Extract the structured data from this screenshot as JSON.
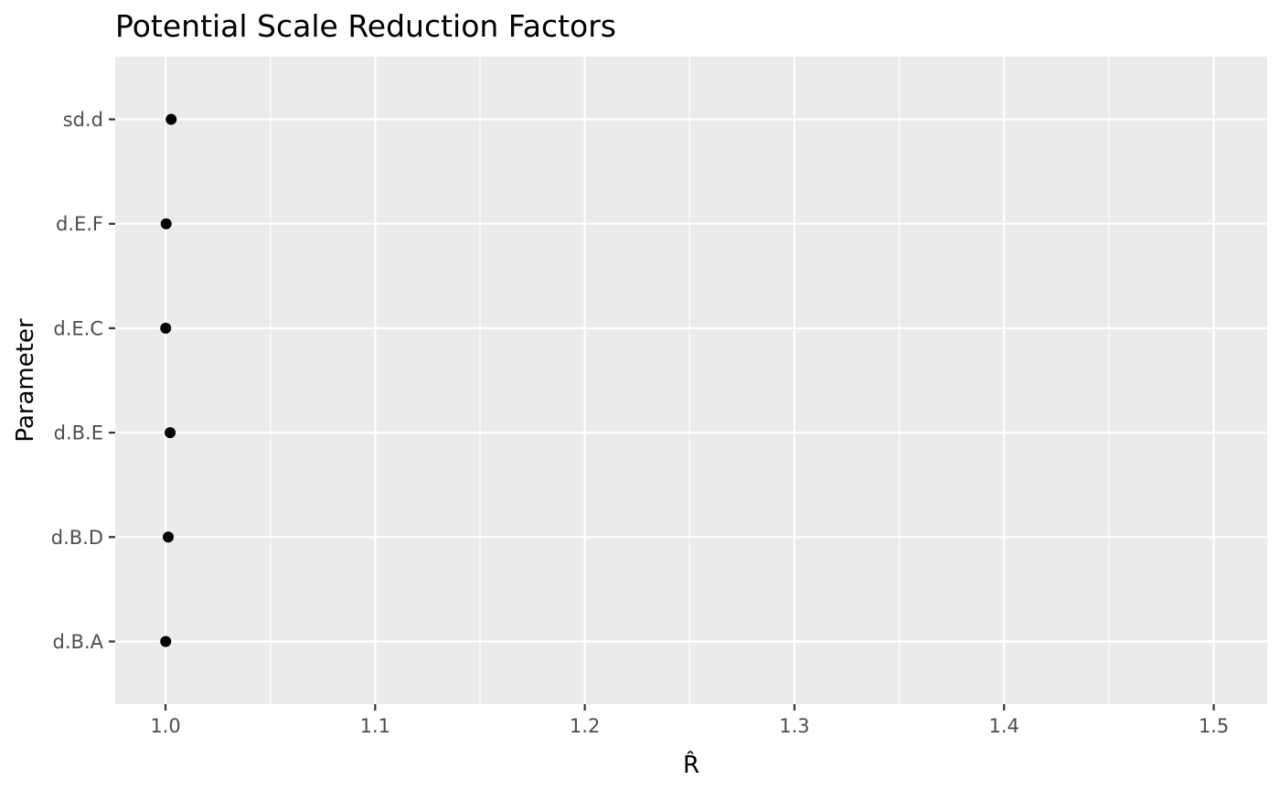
{
  "chart_data": {
    "type": "scatter",
    "title": "Potential Scale Reduction Factors",
    "xlabel": "R̂",
    "ylabel": "Parameter",
    "xlim": [
      0.976,
      1.5255
    ],
    "x_ticks": [
      1.0,
      1.1,
      1.2,
      1.3,
      1.4,
      1.5
    ],
    "x_tick_labels": [
      "1.0",
      "1.1",
      "1.2",
      "1.3",
      "1.4",
      "1.5"
    ],
    "categories": [
      "d.B.A",
      "d.B.D",
      "d.B.E",
      "d.E.C",
      "d.E.F",
      "sd.d"
    ],
    "values": [
      1.0001,
      1.0013,
      1.0022,
      1.0001,
      1.0003,
      1.0027
    ],
    "grid": true,
    "legend": "none",
    "colors": {
      "panel": "#ebebeb",
      "grid": "#ffffff",
      "point": "#000000",
      "tick_label": "#4d4d4d",
      "tick_mark": "#333333"
    }
  }
}
